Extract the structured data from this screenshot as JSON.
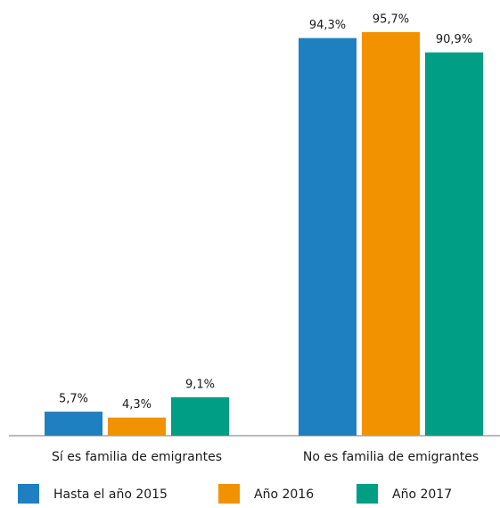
{
  "chart_data": {
    "type": "bar",
    "categories": [
      "Sí es familia de emigrantes",
      "No es familia de emigrantes"
    ],
    "series": [
      {
        "name": "Hasta el año 2015",
        "color": "#1f80c1",
        "values": [
          5.7,
          94.3
        ],
        "value_labels": [
          "5,7%",
          "94,3%"
        ]
      },
      {
        "name": "Año 2016",
        "color": "#f39200",
        "values": [
          4.3,
          95.7
        ],
        "value_labels": [
          "4,3%",
          "95,7%"
        ]
      },
      {
        "name": "Año 2017",
        "color": "#009e85",
        "values": [
          9.1,
          90.9
        ],
        "value_labels": [
          "9,1%",
          "90,9%"
        ]
      }
    ],
    "legend": "bottom"
  }
}
